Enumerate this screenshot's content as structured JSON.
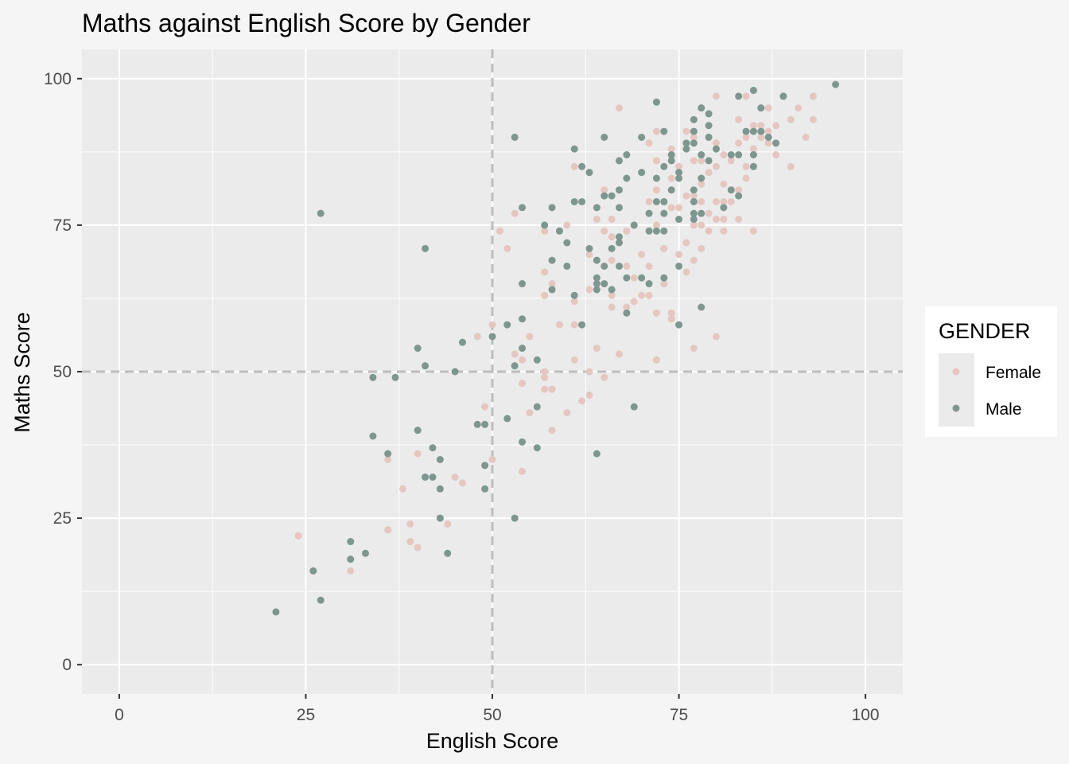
{
  "chart_data": {
    "type": "scatter",
    "title": "Maths against English Score by Gender",
    "xlabel": "English Score",
    "ylabel": "Maths Score",
    "xlim": [
      -5,
      105
    ],
    "ylim": [
      -5,
      105
    ],
    "x_ticks": [
      0,
      25,
      50,
      75,
      100
    ],
    "y_ticks": [
      0,
      25,
      50,
      75,
      100
    ],
    "grid": true,
    "reference_lines": {
      "x": 50,
      "y": 50,
      "style": "dashed",
      "color": "#bdbdbd"
    },
    "legend": {
      "title": "GENDER",
      "position": "right"
    },
    "series": [
      {
        "name": "Female",
        "color": "#e5c6c1",
        "points": [
          [
            24,
            22
          ],
          [
            31,
            16
          ],
          [
            36,
            23
          ],
          [
            36,
            35
          ],
          [
            38,
            30
          ],
          [
            39,
            24
          ],
          [
            39,
            21
          ],
          [
            40,
            20
          ],
          [
            40,
            36
          ],
          [
            44,
            24
          ],
          [
            45,
            32
          ],
          [
            46,
            31
          ],
          [
            48,
            56
          ],
          [
            49,
            44
          ],
          [
            50,
            35
          ],
          [
            50,
            58
          ],
          [
            51,
            74
          ],
          [
            52,
            71
          ],
          [
            53,
            77
          ],
          [
            53,
            53
          ],
          [
            54,
            52
          ],
          [
            54,
            48
          ],
          [
            54,
            33
          ],
          [
            55,
            43
          ],
          [
            55,
            56
          ],
          [
            57,
            74
          ],
          [
            57,
            63
          ],
          [
            57,
            67
          ],
          [
            57,
            50
          ],
          [
            57,
            49
          ],
          [
            57,
            47
          ],
          [
            58,
            47
          ],
          [
            58,
            40
          ],
          [
            58,
            65
          ],
          [
            59,
            58
          ],
          [
            60,
            75
          ],
          [
            60,
            43
          ],
          [
            61,
            85
          ],
          [
            61,
            62
          ],
          [
            61,
            58
          ],
          [
            61,
            52
          ],
          [
            62,
            45
          ],
          [
            63,
            46
          ],
          [
            63,
            64
          ],
          [
            63,
            70
          ],
          [
            63,
            50
          ],
          [
            64,
            76
          ],
          [
            64,
            54
          ],
          [
            65,
            81
          ],
          [
            65,
            74
          ],
          [
            65,
            49
          ],
          [
            66,
            76
          ],
          [
            66,
            73
          ],
          [
            66,
            69
          ],
          [
            66,
            63
          ],
          [
            66,
            61
          ],
          [
            67,
            95
          ],
          [
            67,
            72
          ],
          [
            67,
            53
          ],
          [
            68,
            74
          ],
          [
            68,
            68
          ],
          [
            68,
            61
          ],
          [
            69,
            75
          ],
          [
            69,
            66
          ],
          [
            69,
            62
          ],
          [
            70,
            70
          ],
          [
            70,
            63
          ],
          [
            71,
            89
          ],
          [
            71,
            79
          ],
          [
            71,
            68
          ],
          [
            71,
            63
          ],
          [
            72,
            91
          ],
          [
            72,
            86
          ],
          [
            72,
            81
          ],
          [
            72,
            75
          ],
          [
            72,
            60
          ],
          [
            72,
            52
          ],
          [
            73,
            79
          ],
          [
            73,
            71
          ],
          [
            73,
            65
          ],
          [
            74,
            88
          ],
          [
            74,
            83
          ],
          [
            74,
            78
          ],
          [
            74,
            60
          ],
          [
            74,
            59
          ],
          [
            75,
            85
          ],
          [
            75,
            70
          ],
          [
            75,
            78
          ],
          [
            76,
            91
          ],
          [
            76,
            80
          ],
          [
            76,
            67
          ],
          [
            76,
            72
          ],
          [
            77,
            90
          ],
          [
            77,
            86
          ],
          [
            77,
            80
          ],
          [
            77,
            75
          ],
          [
            77,
            69
          ],
          [
            77,
            54
          ],
          [
            78,
            86
          ],
          [
            78,
            82
          ],
          [
            78,
            79
          ],
          [
            78,
            75
          ],
          [
            78,
            71
          ],
          [
            79,
            84
          ],
          [
            79,
            77
          ],
          [
            79,
            74
          ],
          [
            80,
            97
          ],
          [
            80,
            89
          ],
          [
            80,
            85
          ],
          [
            80,
            79
          ],
          [
            80,
            76
          ],
          [
            80,
            56
          ],
          [
            81,
            87
          ],
          [
            81,
            82
          ],
          [
            81,
            79
          ],
          [
            81,
            76
          ],
          [
            81,
            74
          ],
          [
            82,
            86
          ],
          [
            82,
            81
          ],
          [
            82,
            79
          ],
          [
            83,
            93
          ],
          [
            83,
            89
          ],
          [
            83,
            81
          ],
          [
            83,
            76
          ],
          [
            84,
            97
          ],
          [
            84,
            90
          ],
          [
            84,
            85
          ],
          [
            84,
            83
          ],
          [
            85,
            92
          ],
          [
            85,
            91
          ],
          [
            85,
            88
          ],
          [
            85,
            74
          ],
          [
            86,
            95
          ],
          [
            86,
            92
          ],
          [
            86,
            90
          ],
          [
            87,
            95
          ],
          [
            87,
            91
          ],
          [
            87,
            89
          ],
          [
            88,
            92
          ],
          [
            88,
            87
          ],
          [
            89,
            97
          ],
          [
            90,
            93
          ],
          [
            90,
            85
          ],
          [
            91,
            95
          ],
          [
            92,
            90
          ],
          [
            93,
            97
          ],
          [
            93,
            93
          ]
        ]
      },
      {
        "name": "Male",
        "color": "#7d968f",
        "points": [
          [
            21,
            9
          ],
          [
            26,
            16
          ],
          [
            27,
            11
          ],
          [
            27,
            77
          ],
          [
            31,
            21
          ],
          [
            31,
            18
          ],
          [
            33,
            19
          ],
          [
            34,
            49
          ],
          [
            34,
            39
          ],
          [
            36,
            36
          ],
          [
            37,
            49
          ],
          [
            40,
            54
          ],
          [
            40,
            40
          ],
          [
            41,
            71
          ],
          [
            41,
            51
          ],
          [
            41,
            32
          ],
          [
            42,
            37
          ],
          [
            42,
            32
          ],
          [
            43,
            35
          ],
          [
            43,
            30
          ],
          [
            43,
            25
          ],
          [
            44,
            19
          ],
          [
            45,
            50
          ],
          [
            46,
            55
          ],
          [
            48,
            41
          ],
          [
            49,
            41
          ],
          [
            49,
            34
          ],
          [
            49,
            30
          ],
          [
            50,
            56
          ],
          [
            52,
            58
          ],
          [
            52,
            42
          ],
          [
            53,
            90
          ],
          [
            53,
            51
          ],
          [
            53,
            25
          ],
          [
            54,
            78
          ],
          [
            54,
            65
          ],
          [
            54,
            59
          ],
          [
            54,
            54
          ],
          [
            54,
            38
          ],
          [
            56,
            52
          ],
          [
            56,
            44
          ],
          [
            56,
            37
          ],
          [
            57,
            75
          ],
          [
            58,
            78
          ],
          [
            58,
            69
          ],
          [
            58,
            64
          ],
          [
            59,
            74
          ],
          [
            60,
            72
          ],
          [
            60,
            68
          ],
          [
            61,
            88
          ],
          [
            61,
            79
          ],
          [
            61,
            63
          ],
          [
            62,
            85
          ],
          [
            62,
            79
          ],
          [
            62,
            58
          ],
          [
            63,
            84
          ],
          [
            63,
            71
          ],
          [
            64,
            78
          ],
          [
            64,
            69
          ],
          [
            64,
            66
          ],
          [
            64,
            65
          ],
          [
            64,
            64
          ],
          [
            64,
            36
          ],
          [
            65,
            90
          ],
          [
            65,
            80
          ],
          [
            65,
            68
          ],
          [
            65,
            65
          ],
          [
            66,
            80
          ],
          [
            66,
            71
          ],
          [
            66,
            64
          ],
          [
            67,
            86
          ],
          [
            67,
            81
          ],
          [
            67,
            78
          ],
          [
            67,
            73
          ],
          [
            67,
            72
          ],
          [
            67,
            68
          ],
          [
            68,
            87
          ],
          [
            68,
            83
          ],
          [
            68,
            66
          ],
          [
            68,
            60
          ],
          [
            69,
            75
          ],
          [
            69,
            44
          ],
          [
            70,
            90
          ],
          [
            70,
            84
          ],
          [
            70,
            66
          ],
          [
            71,
            77
          ],
          [
            71,
            74
          ],
          [
            71,
            65
          ],
          [
            72,
            96
          ],
          [
            72,
            83
          ],
          [
            72,
            79
          ],
          [
            72,
            74
          ],
          [
            73,
            91
          ],
          [
            73,
            85
          ],
          [
            73,
            79
          ],
          [
            73,
            77
          ],
          [
            73,
            74
          ],
          [
            73,
            66
          ],
          [
            74,
            87
          ],
          [
            74,
            86
          ],
          [
            74,
            81
          ],
          [
            75,
            84
          ],
          [
            75,
            83
          ],
          [
            75,
            76
          ],
          [
            75,
            68
          ],
          [
            75,
            58
          ],
          [
            76,
            89
          ],
          [
            76,
            88
          ],
          [
            77,
            93
          ],
          [
            77,
            91
          ],
          [
            77,
            89
          ],
          [
            77,
            81
          ],
          [
            77,
            79
          ],
          [
            77,
            77
          ],
          [
            77,
            76
          ],
          [
            78,
            95
          ],
          [
            78,
            87
          ],
          [
            78,
            83
          ],
          [
            78,
            77
          ],
          [
            78,
            61
          ],
          [
            79,
            94
          ],
          [
            79,
            92
          ],
          [
            79,
            90
          ],
          [
            79,
            86
          ],
          [
            80,
            88
          ],
          [
            81,
            78
          ],
          [
            82,
            87
          ],
          [
            82,
            81
          ],
          [
            83,
            97
          ],
          [
            83,
            87
          ],
          [
            83,
            80
          ],
          [
            84,
            91
          ],
          [
            85,
            98
          ],
          [
            85,
            91
          ],
          [
            85,
            87
          ],
          [
            85,
            85
          ],
          [
            86,
            95
          ],
          [
            86,
            91
          ],
          [
            87,
            90
          ],
          [
            88,
            89
          ],
          [
            89,
            97
          ],
          [
            96,
            99
          ]
        ]
      }
    ]
  }
}
